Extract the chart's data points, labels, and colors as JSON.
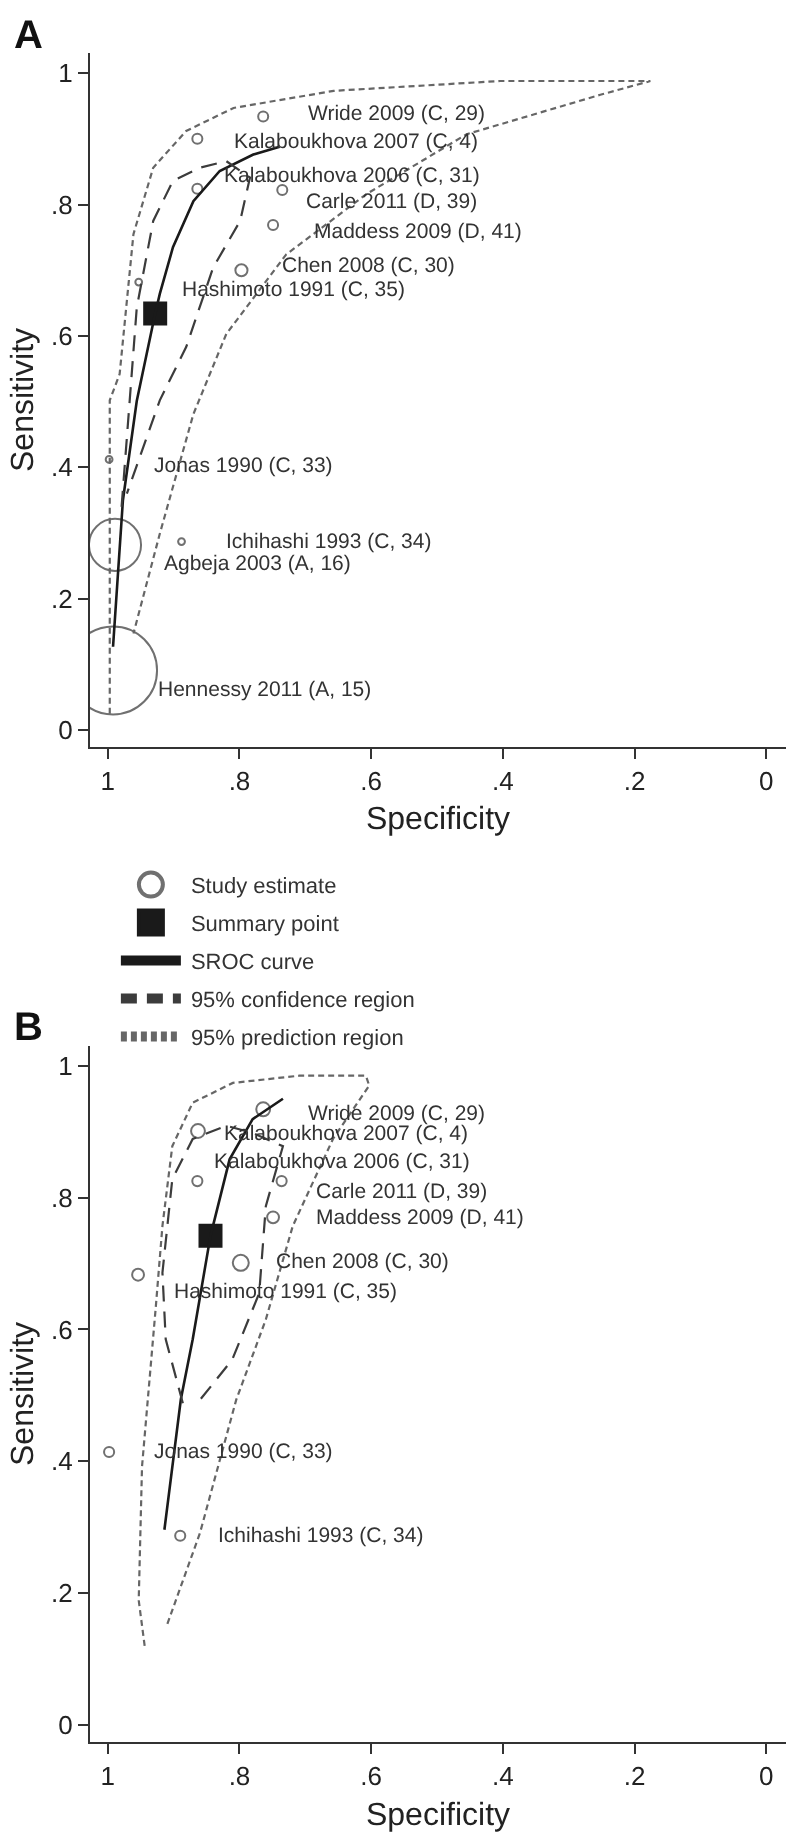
{
  "chart_data": [
    {
      "type": "scatter",
      "title": "A",
      "xlabel": "Specificity",
      "ylabel": "Sensitivity",
      "xlim": [
        1.027,
        -0.03
      ],
      "xticks": [
        1,
        {
          "value": 0.8,
          "label": ".8"
        },
        {
          "value": 0.6,
          "label": ".6"
        },
        {
          "value": 0.4,
          "label": ".4"
        },
        {
          "value": 0.2,
          "label": ".2"
        },
        0
      ],
      "ylim": [
        -0.025,
        1.03
      ],
      "yticks": [
        0,
        {
          "value": 0.2,
          "label": ".2"
        },
        {
          "value": 0.4,
          "label": ".4"
        },
        {
          "value": 0.6,
          "label": ".6"
        },
        {
          "value": 0.8,
          "label": ".8"
        },
        1
      ],
      "legend": "bottom",
      "series": [
        {
          "name": "Study estimate",
          "type": "bubble",
          "color": "#333333",
          "marker": "circle",
          "x": [
            0.764,
            0.864,
            0.864,
            0.735,
            0.749,
            0.797,
            0.953,
            0.998,
            0.888,
            0.989,
            0.992
          ],
          "values": [
            0.934,
            0.9,
            0.824,
            0.822,
            0.769,
            0.7,
            0.682,
            0.412,
            0.287,
            0.282,
            0.091
          ],
          "sizes": [
            0.013,
            0.013,
            0.013,
            0.013,
            0.013,
            0.019,
            0.006,
            0.006,
            0.006,
            0.35,
            1
          ]
        },
        {
          "name": "Summary point",
          "color": "#1a1a1a",
          "marker": "square",
          "x": [
            0.928
          ],
          "values": [
            0.634
          ]
        },
        {
          "name": "SROC curve",
          "type": "line",
          "color": "#1a1a1a",
          "marker": "none",
          "line_style": "solid",
          "x": [
            0.992,
            0.977,
            0.956,
            0.928,
            0.921,
            0.901,
            0.87,
            0.83,
            0.779,
            0.739
          ],
          "values": [
            0.127,
            0.35,
            0.501,
            0.634,
            0.664,
            0.735,
            0.805,
            0.851,
            0.876,
            0.888
          ]
        },
        {
          "name": "95% confidence region",
          "type": "line",
          "color": "#3c3c3c",
          "marker": "none",
          "line_style": "dashed",
          "x": [
            0.979,
            0.956,
            0.931,
            0.901,
            0.86,
            0.82,
            0.784,
            0.799,
            0.84,
            0.881,
            0.921,
            0.971
          ],
          "values": [
            0.34,
            0.643,
            0.775,
            0.836,
            0.856,
            0.866,
            0.841,
            0.775,
            0.704,
            0.583,
            0.502,
            0.36
          ]
        },
        {
          "name": "95% prediction region",
          "type": "line",
          "color": "#666666",
          "marker": "none",
          "line_style": "dotted",
          "x": [
            0.997,
            0.997,
            0.982,
            0.961,
            0.931,
            0.881,
            0.809,
            0.657,
            0.404,
            0.176,
            0.252,
            0.455,
            0.607,
            0.729,
            0.82,
            0.87,
            0.921,
            0.961
          ],
          "values": [
            0.025,
            0.502,
            0.542,
            0.755,
            0.856,
            0.912,
            0.947,
            0.973,
            0.988,
            0.988,
            0.967,
            0.907,
            0.816,
            0.724,
            0.603,
            0.481,
            0.299,
            0.147
          ]
        }
      ],
      "annotations": [
        {
          "text": "Wride 2009 (C, 29)",
          "x": 0.764,
          "y": 0.934
        },
        {
          "text": "Kalaboukhova 2007 (C, 4)",
          "x": 0.864,
          "y": 0.9
        },
        {
          "text": "Kalaboukhova 2006 (C, 31)",
          "x": 0.864,
          "y": 0.824
        },
        {
          "text": "Carle 2011 (D, 39)",
          "x": 0.735,
          "y": 0.822
        },
        {
          "text": "Maddess 2009 (D, 41)",
          "x": 0.749,
          "y": 0.769
        },
        {
          "text": "Chen 2008 (C, 30)",
          "x": 0.797,
          "y": 0.7
        },
        {
          "text": "Hashimoto 1991 (C, 35)",
          "x": 0.953,
          "y": 0.682
        },
        {
          "text": "Jonas 1990 (C, 33)",
          "x": 0.998,
          "y": 0.412
        },
        {
          "text": "Ichihashi 1993 (C, 34)",
          "x": 0.888,
          "y": 0.287
        },
        {
          "text": "Agbeja 2003 (A, 16)",
          "x": 0.989,
          "y": 0.282
        },
        {
          "text": "Hennessy 2011 (A, 15)",
          "x": 0.992,
          "y": 0.091
        }
      ]
    },
    {
      "type": "scatter",
      "title": "B",
      "xlabel": "Specificity",
      "ylabel": "Sensitivity",
      "xlim": [
        1.027,
        -0.03
      ],
      "xticks": [
        1,
        {
          "value": 0.8,
          "label": ".8"
        },
        {
          "value": 0.6,
          "label": ".6"
        },
        {
          "value": 0.4,
          "label": ".4"
        },
        {
          "value": 0.2,
          "label": ".2"
        },
        0
      ],
      "ylim": [
        -0.026,
        1.03
      ],
      "yticks": [
        0,
        {
          "value": 0.2,
          "label": ".2"
        },
        {
          "value": 0.4,
          "label": ".4"
        },
        {
          "value": 0.6,
          "label": ".6"
        },
        {
          "value": 0.8,
          "label": ".8"
        },
        1
      ],
      "legend": false,
      "series": [
        {
          "type": "bubble",
          "color": "#333333",
          "marker": "circle",
          "x": [
            0.764,
            0.863,
            0.864,
            0.736,
            0.749,
            0.798,
            0.954,
            0.998,
            0.89
          ],
          "values": [
            0.934,
            0.901,
            0.825,
            0.825,
            0.77,
            0.701,
            0.683,
            0.414,
            0.287
          ],
          "sizes": [
            0.75,
            0.75,
            0.4,
            0.4,
            0.55,
            1,
            0.55,
            0.4,
            0.4
          ]
        },
        {
          "color": "#1a1a1a",
          "marker": "square",
          "x": [
            0.844
          ],
          "values": [
            0.742
          ]
        },
        {
          "type": "line",
          "color": "#1a1a1a",
          "marker": "none",
          "line_style": "solid",
          "x": [
            0.914,
            0.889,
            0.871,
            0.844,
            0.815,
            0.78,
            0.734
          ],
          "values": [
            0.296,
            0.494,
            0.585,
            0.742,
            0.858,
            0.919,
            0.95
          ]
        },
        {
          "type": "line",
          "color": "#3c3c3c",
          "marker": "none",
          "line_style": "dashed",
          "x": [
            0.886,
            0.912,
            0.917,
            0.902,
            0.871,
            0.82,
            0.78,
            0.734,
            0.76,
            0.77,
            0.811,
            0.86
          ],
          "values": [
            0.488,
            0.585,
            0.686,
            0.828,
            0.889,
            0.909,
            0.898,
            0.878,
            0.787,
            0.655,
            0.554,
            0.493
          ]
        },
        {
          "type": "line",
          "color": "#666666",
          "marker": "none",
          "line_style": "dotted",
          "x": [
            0.944,
            0.953,
            0.948,
            0.927,
            0.917,
            0.902,
            0.871,
            0.81,
            0.709,
            0.608,
            0.603,
            0.658,
            0.719,
            0.76,
            0.805,
            0.86,
            0.911
          ],
          "values": [
            0.12,
            0.189,
            0.392,
            0.635,
            0.757,
            0.878,
            0.944,
            0.974,
            0.985,
            0.985,
            0.97,
            0.889,
            0.757,
            0.615,
            0.493,
            0.291,
            0.149
          ]
        }
      ],
      "annotations": [
        {
          "text": "Wride 2009 (C, 29)",
          "x": 0.764,
          "y": 0.934
        },
        {
          "text": "Kalaboukhova 2007 (C, 4)",
          "x": 0.863,
          "y": 0.901
        },
        {
          "text": "Kalaboukhova 2006 (C, 31)",
          "x": 0.864,
          "y": 0.825
        },
        {
          "text": "Carle 2011 (D, 39)",
          "x": 0.736,
          "y": 0.825
        },
        {
          "text": "Maddess 2009 (D, 41)",
          "x": 0.749,
          "y": 0.77
        },
        {
          "text": "Chen 2008 (C, 30)",
          "x": 0.798,
          "y": 0.701
        },
        {
          "text": "Hashimoto 1991 (C, 35)",
          "x": 0.954,
          "y": 0.683
        },
        {
          "text": "Jonas 1990 (C, 33)",
          "x": 0.998,
          "y": 0.414
        },
        {
          "text": "Ichihashi 1993 (C, 34)",
          "x": 0.89,
          "y": 0.287
        }
      ]
    }
  ]
}
